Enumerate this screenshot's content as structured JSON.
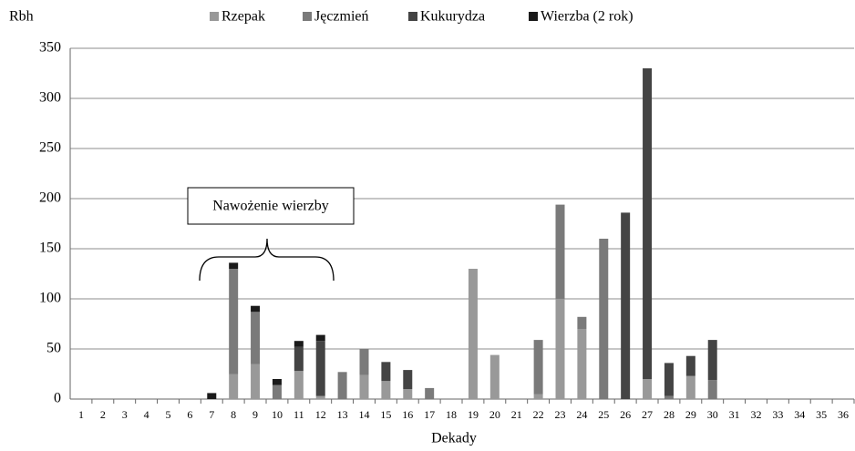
{
  "chart_data": {
    "type": "stacked_bar",
    "y_label": "Rbh",
    "x_label": "Dekady",
    "annotation": "Nawożenie wierzby",
    "categories": [
      "1",
      "2",
      "3",
      "4",
      "5",
      "6",
      "7",
      "8",
      "9",
      "10",
      "11",
      "12",
      "13",
      "14",
      "15",
      "16",
      "17",
      "18",
      "19",
      "20",
      "21",
      "22",
      "23",
      "24",
      "25",
      "26",
      "27",
      "28",
      "29",
      "30",
      "31",
      "32",
      "33",
      "34",
      "35",
      "36"
    ],
    "series": [
      {
        "name": "Rzepak",
        "color": "#999999",
        "values": [
          0,
          0,
          0,
          0,
          0,
          0,
          0,
          25,
          35,
          0,
          28,
          3,
          0,
          24,
          18,
          10,
          0,
          0,
          130,
          44,
          0,
          5,
          100,
          70,
          0,
          0,
          20,
          0,
          23,
          0,
          0,
          0,
          0,
          0,
          0,
          0
        ]
      },
      {
        "name": "Jęczmień",
        "color": "#7a7a7a",
        "values": [
          0,
          0,
          0,
          0,
          0,
          0,
          0,
          105,
          52,
          14,
          0,
          0,
          27,
          26,
          0,
          0,
          11,
          0,
          0,
          0,
          0,
          54,
          94,
          12,
          160,
          0,
          0,
          3,
          0,
          19,
          0,
          0,
          0,
          0,
          0,
          0
        ]
      },
      {
        "name": "Kukurydza",
        "color": "#444444",
        "values": [
          0,
          0,
          0,
          0,
          0,
          0,
          0,
          0,
          0,
          0,
          24,
          55,
          0,
          0,
          19,
          19,
          0,
          0,
          0,
          0,
          0,
          0,
          0,
          0,
          0,
          186,
          310,
          33,
          20,
          40,
          0,
          0,
          0,
          0,
          0,
          0
        ]
      },
      {
        "name": "Wierzba (2 rok)",
        "color": "#1a1a1a",
        "values": [
          0,
          0,
          0,
          0,
          0,
          0,
          6,
          6,
          6,
          6,
          6,
          6,
          0,
          0,
          0,
          0,
          0,
          0,
          0,
          0,
          0,
          0,
          0,
          0,
          0,
          0,
          0,
          0,
          0,
          0,
          0,
          0,
          0,
          0,
          0,
          0
        ]
      }
    ],
    "ylim": [
      0,
      350
    ],
    "yticks": [
      0,
      50,
      100,
      150,
      200,
      250,
      300,
      350
    ],
    "grid": true
  }
}
